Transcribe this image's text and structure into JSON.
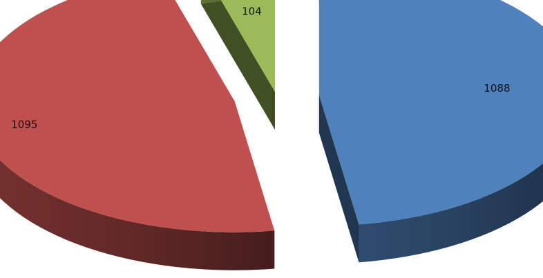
{
  "chart_data": {
    "type": "pie",
    "style": "3d-exploded",
    "title": "",
    "slices": [
      {
        "label": "1088",
        "value": 1088,
        "color": "#4f81bd"
      },
      {
        "label": "1095",
        "value": 1095,
        "color": "#c0504d"
      },
      {
        "label": "104",
        "value": 104,
        "color": "#9bbb59"
      }
    ],
    "legend": "none"
  }
}
